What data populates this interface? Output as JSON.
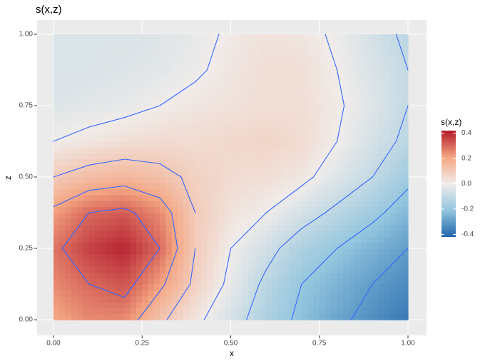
{
  "chart_data": {
    "type": "heatmap",
    "title": "s(x,z)",
    "x_label": "x",
    "y_label": "z",
    "legend_title": "s(x,z)",
    "x": [
      0,
      0.1,
      0.2,
      0.3,
      0.4,
      0.5,
      0.6,
      0.7,
      0.8,
      0.9,
      1.0
    ],
    "y": [
      0,
      0.125,
      0.25,
      0.375,
      0.5,
      0.625,
      0.75,
      0.875,
      1.0
    ],
    "values": [
      [
        0.2,
        0.25,
        0.25,
        0.12,
        0.02,
        -0.06,
        -0.15,
        -0.22,
        -0.28,
        -0.33,
        -0.38
      ],
      [
        0.25,
        0.3,
        0.33,
        0.22,
        0.08,
        -0.02,
        -0.12,
        -0.2,
        -0.25,
        -0.3,
        -0.34
      ],
      [
        0.28,
        0.36,
        0.4,
        0.3,
        0.1,
        0.0,
        -0.07,
        -0.15,
        -0.2,
        -0.25,
        -0.3
      ],
      [
        0.22,
        0.3,
        0.32,
        0.25,
        0.1,
        0.03,
        0.0,
        -0.06,
        -0.12,
        -0.18,
        -0.24
      ],
      [
        0.1,
        0.14,
        0.16,
        0.13,
        0.08,
        0.05,
        0.04,
        0.02,
        -0.04,
        -0.1,
        -0.18
      ],
      [
        0.0,
        0.02,
        0.04,
        0.05,
        0.05,
        0.06,
        0.07,
        0.05,
        0.0,
        -0.06,
        -0.12
      ],
      [
        -0.04,
        -0.03,
        -0.02,
        0.0,
        0.02,
        0.03,
        0.04,
        0.04,
        0.01,
        -0.04,
        -0.1
      ],
      [
        -0.05,
        -0.05,
        -0.04,
        -0.03,
        -0.01,
        0.02,
        0.04,
        0.04,
        0.0,
        -0.05,
        -0.1
      ],
      [
        -0.05,
        -0.05,
        -0.05,
        -0.04,
        -0.02,
        0.01,
        0.03,
        0.02,
        -0.01,
        -0.06,
        -0.12
      ]
    ],
    "contour_levels": [
      -0.3,
      -0.2,
      -0.1,
      0,
      0.1,
      0.2,
      0.3
    ],
    "contour_color": "#3366ff",
    "colors": [
      "#2166ac",
      "#92c5de",
      "#f0ecea",
      "#f4a582",
      "#b2182b"
    ],
    "fill_lim": [
      -0.42,
      0.42
    ],
    "fill_ticks": [
      {
        "value": -0.4,
        "label": "-0.4"
      },
      {
        "value": -0.2,
        "label": "-0.2"
      },
      {
        "value": 0,
        "label": "0.0"
      },
      {
        "value": 0.2,
        "label": "0.2"
      },
      {
        "value": 0.4,
        "label": "0.4"
      }
    ],
    "xlim": [
      0,
      1
    ],
    "ylim": [
      0,
      1
    ],
    "xticks": [
      {
        "value": 0,
        "label": "0.00"
      },
      {
        "value": 0.25,
        "label": "0.25"
      },
      {
        "value": 0.5,
        "label": "0.50"
      },
      {
        "value": 0.75,
        "label": "0.75"
      },
      {
        "value": 1,
        "label": "1.00"
      }
    ],
    "yticks": [
      {
        "value": 0,
        "label": "0.00"
      },
      {
        "value": 0.25,
        "label": "0.25"
      },
      {
        "value": 0.5,
        "label": "0.50"
      },
      {
        "value": 0.75,
        "label": "0.75"
      },
      {
        "value": 1,
        "label": "1.00"
      }
    ],
    "grid": true
  }
}
